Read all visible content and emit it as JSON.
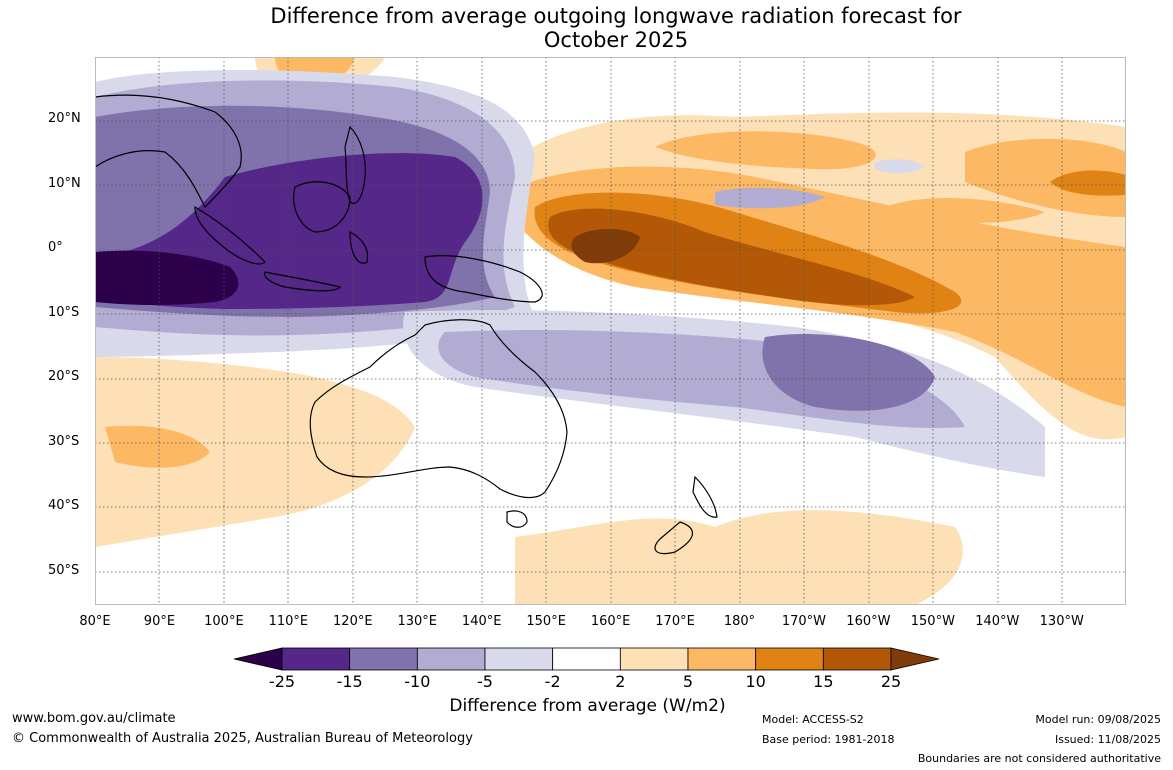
{
  "title_line1": "Difference from average outgoing longwave radiation forecast for",
  "title_line2": "October 2025",
  "lat_labels": [
    "20°N",
    "10°N",
    "0°",
    "10°S",
    "20°S",
    "30°S",
    "40°S",
    "50°S"
  ],
  "lon_labels": [
    "80°E",
    "90°E",
    "100°E",
    "110°E",
    "120°E",
    "130°E",
    "140°E",
    "150°E",
    "160°E",
    "170°E",
    "180°",
    "170°W",
    "160°W",
    "150°W",
    "140°W",
    "130°W"
  ],
  "colorbar": {
    "ticks": [
      "-25",
      "-15",
      "-10",
      "-5",
      "-2",
      "2",
      "5",
      "10",
      "15",
      "25"
    ],
    "colors": [
      "#2d004b",
      "#542788",
      "#8073ac",
      "#b2abd2",
      "#d8daeb",
      "#ffffff",
      "#fee0b6",
      "#fdb863",
      "#e08214",
      "#b35806",
      "#7f3b08"
    ],
    "title": "Difference from average (W/m2)"
  },
  "footer": {
    "website": "www.bom.gov.au/climate",
    "copyright": "© Commonwealth of Australia 2025, Australian Bureau of Meteorology",
    "model": "Model: ACCESS-S2",
    "base_period": "Base period: 1981-2018",
    "model_run": "Model run: 09/08/2025",
    "issued": "Issued: 11/08/2025",
    "disclaimer": "Boundaries are not considered authoritative"
  }
}
